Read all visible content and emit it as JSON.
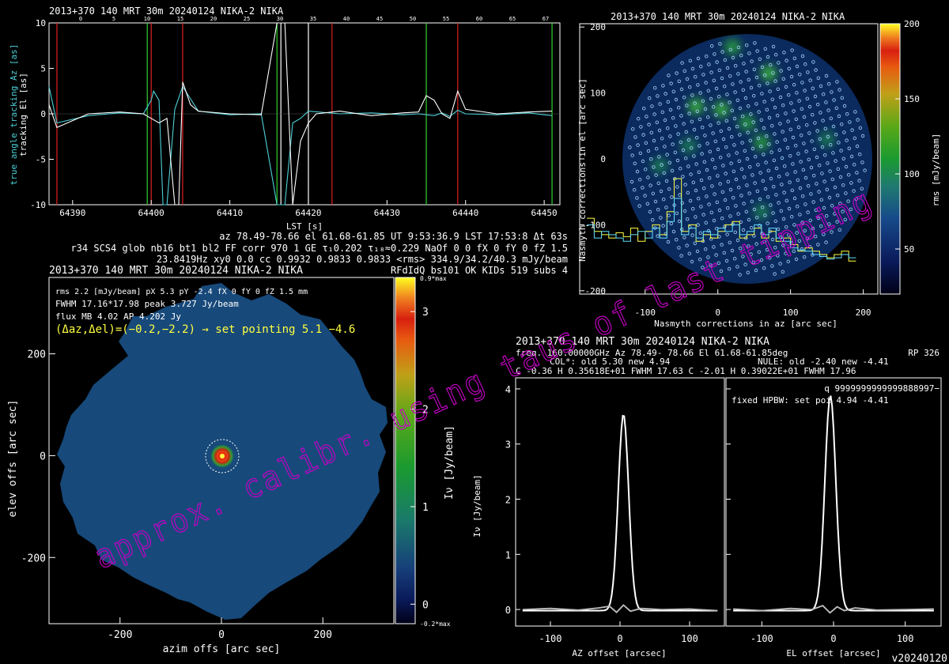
{
  "header_line": "2013+370 140 MRT 30m  20240124 NIKA-2 NIKA",
  "tracking": {
    "title": "2013+370 140 MRT 30m  20240124 NIKA-2 NIKA",
    "xlabel": "LST [s]",
    "ylabel_az": "true angle tracking Az [as]",
    "ylabel_el": "tracking El [as]",
    "xticks": [
      64390,
      64400,
      64410,
      64420,
      64430,
      64440,
      64450
    ],
    "yticks": [
      10,
      5,
      0,
      -5,
      -10
    ],
    "top_ticks": [
      "0",
      "5",
      "10",
      "15",
      "20",
      "25",
      "30",
      "35",
      "40",
      "45",
      "50",
      "55",
      "60",
      "65",
      "67"
    ],
    "info_lines": [
      "az 78.49-78.66 el 61.68-61.85 UT 9:53:36.9 LST 17:53:8 Δt 63s",
      "r34 SCS4 glob nb16 bt1 bl2 FF corr 970 1 GE τ₁0.202 τ₁₈≈0.229 NaOf 0 0 fX 0 fY 0 fZ 1.5",
      "23.8419Hz xy0 0.0 cc 0.9932 0.9833 0.9833 <rms> 334.9/34.2/40.3 mJy/beam",
      "RFdIdQ bs101 OK KIDs 519 subs 4"
    ]
  },
  "nasmyth": {
    "title": "2013+370 140 MRT 30m  20240124 NIKA-2 NIKA",
    "xlabel": "Nasmyth corrections in az [arc sec]",
    "ylabel": "Nasmyth corrections in el [arc sec]",
    "xticks": [
      -100,
      0,
      100,
      200
    ],
    "yticks": [
      200,
      100,
      0,
      -100,
      -200
    ],
    "colorbar_label": "rms [mJy/beam]",
    "colorbar_ticks": [
      200,
      150,
      100,
      50
    ]
  },
  "map": {
    "title": "2013+370 140 MRT 30m  20240124 NIKA-2 NIKA",
    "line1": "rms 2.2 [mJy/beam] pX 5.3 pY -2.4 fX 0 fY 0 fZ 1.5 mm",
    "line2": "FWHM 17.16*17.98 peak 3.727 Jy/beam",
    "line3": "flux MB 4.02 AP 4.202 Jy",
    "pointing": "(Δaz,Δel)=(−0.2,−2.2) → set pointing 5.1 −4.6",
    "xlabel": "azim offs [arc sec]",
    "ylabel": "elev offs [arc sec]",
    "xticks": [
      -200,
      0,
      200
    ],
    "yticks": [
      200,
      0,
      -200
    ],
    "colorbar_label": "Iν [Jy/beam]",
    "colorbar_ticks": [
      3,
      2,
      1,
      0
    ],
    "colorbar_top": "0.9*max",
    "colorbar_bottom": "-0.2*max"
  },
  "profiles": {
    "title": "2013+370 140 MRT 30m  20240124 NIKA-2 NIKA",
    "freq_line": "freq. 160.00000GHz  Az  78.49- 78.66 El 61.68-61.85deg",
    "rp": "RP  326",
    "col_line": "COL*: old      5.30 new      4.94",
    "nule_line": "NULE: old     -2.40 new     -4.41",
    "fit_line": "C   -0.36     H  0.35618E+01 FWHM  17.63 C   -2.01     H  0.39022E+01 FWHM  17.96",
    "q_line": "q 9999999999999888997−",
    "hpbw_line": "fixed HPBW: set poi    4.94   -4.41",
    "ylabel": "Iν [Jy/beam]",
    "xlabel_az": "AZ offset [arcsec]",
    "xlabel_el": "EL offset [arcsec]",
    "yticks": [
      4,
      3,
      2,
      1,
      0
    ],
    "xticks": [
      -100,
      0,
      100
    ]
  },
  "watermark": "approx. calibr. using taus of last tipping",
  "version": "v20240120",
  "chart_data": [
    {
      "type": "line",
      "title": "2013+370 140 MRT 30m  20240124 NIKA-2 NIKA",
      "xlabel": "LST [s]",
      "ylabel": "true angle tracking Az [as] / tracking El [as]",
      "xlim": [
        64387,
        64452
      ],
      "ylim": [
        -10,
        10
      ],
      "series": [
        {
          "name": "true angle tracking Az",
          "color": "#4dd0d8",
          "x": [
            64387,
            64388,
            64392,
            64396,
            64399,
            64400,
            64400.3,
            64401,
            64401.5,
            64402,
            64403,
            64404,
            64406,
            64410,
            64414,
            64416,
            64417,
            64418,
            64419,
            64420,
            64424,
            64428,
            64432,
            64434,
            64436,
            64437,
            64438,
            64439,
            64440,
            64444,
            64448,
            64451
          ],
          "y": [
            3.0,
            -1.0,
            -0.2,
            0.1,
            0.0,
            1.5,
            2.5,
            1.5,
            -10,
            -10,
            0.5,
            3.0,
            0.3,
            -0.1,
            0.0,
            -10,
            -10,
            -1.0,
            -0.5,
            0.3,
            0.0,
            0.1,
            -0.1,
            0.0,
            -0.2,
            0.1,
            -0.3,
            0.4,
            0.0,
            -0.1,
            0.1,
            -0.2
          ]
        },
        {
          "name": "tracking El",
          "color": "#ffffff",
          "x": [
            64387,
            64388,
            64392,
            64396,
            64399,
            64400,
            64401,
            64402,
            64403,
            64403.5,
            64404,
            64405,
            64406,
            64410,
            64414,
            64416,
            64417,
            64418,
            64419,
            64420,
            64421,
            64424,
            64428,
            64432,
            64434,
            64435,
            64436,
            64437,
            64438,
            64439,
            64440,
            64444,
            64448,
            64451
          ],
          "y": [
            1.0,
            -1.5,
            0.0,
            0.2,
            0.0,
            -0.5,
            -1.0,
            -0.5,
            -10,
            -10,
            3.5,
            1.0,
            0.3,
            0.0,
            -0.1,
            10,
            10,
            -10,
            -3.0,
            -1.0,
            0.0,
            0.3,
            -0.2,
            0.1,
            0.2,
            2.0,
            1.5,
            0.0,
            -0.5,
            2.5,
            0.5,
            0.0,
            0.2,
            0.3
          ]
        }
      ],
      "vlines_red": [
        64388,
        64400,
        64404,
        64423,
        64439
      ],
      "vlines_green": [
        64399.5,
        64416,
        64435,
        64451
      ],
      "vlines_white": [
        64416.5,
        64420
      ]
    },
    {
      "type": "heatmap",
      "title": "2013+370 140 MRT 30m  20240124 NIKA-2 NIKA",
      "xlabel": "Nasmyth corrections in az [arc sec]",
      "ylabel": "Nasmyth corrections in el [arc sec]",
      "xlim": [
        -190,
        220
      ],
      "ylim": [
        -205,
        205
      ],
      "colorbar": {
        "label": "rms [mJy/beam]",
        "range": [
          20,
          200
        ],
        "ticks": [
          50,
          100,
          150,
          200
        ]
      },
      "field_radius": 180,
      "hot_spots": [
        {
          "x": 20,
          "y": 170,
          "v": 90
        },
        {
          "x": 70,
          "y": 130,
          "v": 100
        },
        {
          "x": -30,
          "y": 80,
          "v": 110
        },
        {
          "x": 5,
          "y": 75,
          "v": 95
        },
        {
          "x": 40,
          "y": 55,
          "v": 80
        },
        {
          "x": 60,
          "y": 25,
          "v": 85
        },
        {
          "x": -40,
          "y": 20,
          "v": 70
        },
        {
          "x": 150,
          "y": 30,
          "v": 65
        },
        {
          "x": 60,
          "y": -80,
          "v": 60
        },
        {
          "x": -80,
          "y": -10,
          "v": 55
        }
      ],
      "histograms": [
        {
          "name": "yellow",
          "color": "#ffff40",
          "x": [
            -175,
            -165,
            -155,
            -145,
            -135,
            -125,
            -115,
            -105,
            -95,
            -85,
            -75,
            -65,
            -55,
            -45,
            -35,
            -25,
            -15,
            -5,
            5,
            15,
            25,
            35,
            45,
            55,
            65,
            75,
            85,
            95,
            105,
            115,
            125,
            135,
            145,
            155,
            165,
            175,
            185
          ],
          "y": [
            -90,
            -110,
            -115,
            -120,
            -112,
            -118,
            -105,
            -125,
            -110,
            -100,
            -115,
            -80,
            -30,
            -110,
            -100,
            -125,
            -115,
            -120,
            -110,
            -100,
            -95,
            -120,
            -115,
            -105,
            -120,
            -110,
            -125,
            -120,
            -130,
            -140,
            -135,
            -140,
            -145,
            -150,
            -145,
            -140,
            -155
          ]
        },
        {
          "name": "cyan",
          "color": "#60e0ff",
          "x": [
            -175,
            -165,
            -155,
            -145,
            -135,
            -125,
            -115,
            -105,
            -95,
            -85,
            -75,
            -65,
            -55,
            -45,
            -35,
            -25,
            -15,
            -5,
            5,
            15,
            25,
            35,
            45,
            55,
            65,
            75,
            85,
            95,
            105,
            115,
            125,
            135,
            145,
            155,
            165,
            175,
            185
          ],
          "y": [
            -100,
            -120,
            -110,
            -115,
            -120,
            -125,
            -115,
            -110,
            -120,
            -105,
            -120,
            -95,
            -60,
            -115,
            -105,
            -120,
            -110,
            -115,
            -105,
            -110,
            -100,
            -115,
            -110,
            -100,
            -115,
            -105,
            -120,
            -125,
            -135,
            -138,
            -140,
            -145,
            -148,
            -152,
            -150,
            -145,
            -150
          ]
        }
      ]
    },
    {
      "type": "heatmap",
      "title": "2013+370 140 MRT 30m  20240124 NIKA-2 NIKA",
      "xlabel": "azim offs [arc sec]",
      "ylabel": "elev offs [arc sec]",
      "xlim": [
        -340,
        340
      ],
      "ylim": [
        -330,
        350
      ],
      "colorbar": {
        "label": "Iν [Jy/beam]",
        "range": [
          -0.2,
          3.35
        ],
        "ticks": [
          0,
          1,
          2,
          3
        ]
      },
      "source": {
        "x": 5.1,
        "y": -4.6,
        "peak_Jy_per_beam": 3.727,
        "fwhm": [
          17.16,
          17.98
        ]
      },
      "background_level": 0.05
    },
    {
      "type": "line",
      "title": "2013+370 140 MRT 30m  20240124 NIKA-2 NIKA",
      "xlabel": "AZ offset [arcsec]",
      "ylabel": "Iν [Jy/beam]",
      "xlim": [
        -150,
        150
      ],
      "ylim": [
        -0.3,
        4.2
      ],
      "series": [
        {
          "name": "fit",
          "color": "#ffffff",
          "x0": 4.94,
          "amplitude": 3.56,
          "fwhm": 17.63,
          "offset": -0.02
        },
        {
          "name": "residual",
          "color": "#c0c0c0",
          "x": [
            -140,
            -100,
            -60,
            -30,
            -15,
            -5,
            5,
            15,
            30,
            60,
            100,
            140
          ],
          "y": [
            0.0,
            0.02,
            -0.01,
            0.03,
            0.06,
            -0.05,
            0.08,
            -0.03,
            0.02,
            0.0,
            0.01,
            -0.02
          ]
        }
      ]
    },
    {
      "type": "line",
      "title": "2013+370 140 MRT 30m  20240124 NIKA-2 NIKA",
      "xlabel": "EL offset [arcsec]",
      "ylabel": "Iν [Jy/beam]",
      "xlim": [
        -150,
        150
      ],
      "ylim": [
        -0.3,
        4.2
      ],
      "series": [
        {
          "name": "fit",
          "color": "#ffffff",
          "x0": -4.41,
          "amplitude": 3.9,
          "fwhm": 17.96,
          "offset": -0.02
        },
        {
          "name": "residual",
          "color": "#c0c0c0",
          "x": [
            -140,
            -100,
            -60,
            -30,
            -15,
            -5,
            5,
            15,
            30,
            60,
            100,
            140
          ],
          "y": [
            0.01,
            -0.02,
            0.02,
            0.0,
            0.07,
            -0.06,
            0.05,
            -0.02,
            0.03,
            -0.01,
            0.0,
            0.01
          ]
        }
      ]
    }
  ]
}
